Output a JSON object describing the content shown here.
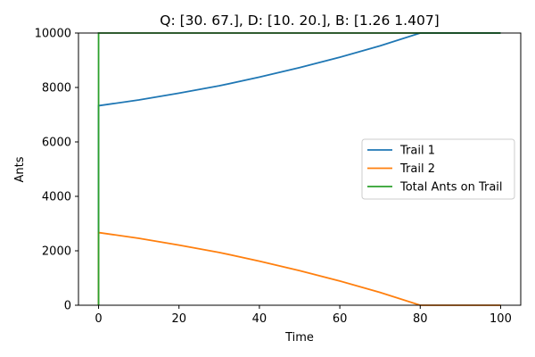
{
  "chart_data": {
    "type": "line",
    "title": "Q: [30. 67.], D: [10. 20.], B: [1.26  1.407]",
    "xlabel": "Time",
    "ylabel": "Ants",
    "xlim": [
      -5,
      105
    ],
    "ylim": [
      0,
      10000
    ],
    "xticks": [
      0,
      20,
      40,
      60,
      80,
      100
    ],
    "yticks": [
      0,
      2000,
      4000,
      6000,
      8000,
      10000
    ],
    "grid": false,
    "legend_position": "center-right",
    "series": [
      {
        "name": "Trail 1",
        "color": "#1f77b4",
        "x": [
          0,
          0,
          10,
          20,
          30,
          40,
          50,
          60,
          70,
          80,
          100
        ],
        "y": [
          0,
          7330,
          7540,
          7790,
          8060,
          8380,
          8730,
          9110,
          9530,
          10000,
          10000
        ]
      },
      {
        "name": "Trail 2",
        "color": "#ff7f0e",
        "x": [
          0,
          0,
          10,
          20,
          30,
          40,
          50,
          60,
          70,
          80,
          100
        ],
        "y": [
          0,
          2670,
          2460,
          2210,
          1940,
          1620,
          1270,
          890,
          470,
          0,
          0
        ]
      },
      {
        "name": "Total Ants on Trail",
        "color": "#2ca02c",
        "x": [
          0,
          0,
          100
        ],
        "y": [
          0,
          10000,
          10000
        ]
      }
    ]
  }
}
